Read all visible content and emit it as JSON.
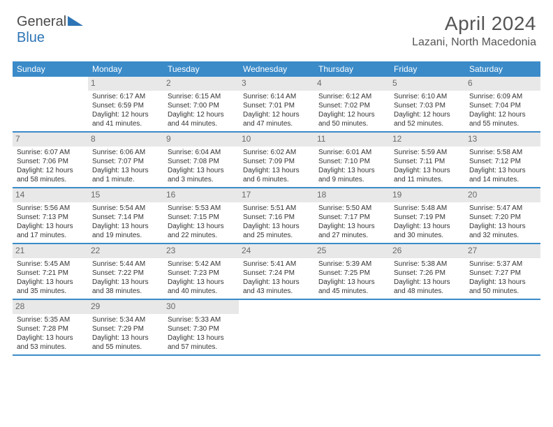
{
  "logo": {
    "text1": "General",
    "text2": "Blue",
    "color_gray": "#4a4a4a",
    "color_blue": "#2e75b6"
  },
  "title": "April 2024",
  "subtitle": "Lazani, North Macedonia",
  "colors": {
    "header_bg": "#3b8bc9",
    "header_text": "#ffffff",
    "daynum_bg": "#e8e8e8",
    "daynum_text": "#6a6a6a",
    "row_border": "#3b8bc9",
    "body_text": "#333333"
  },
  "weekdays": [
    "Sunday",
    "Monday",
    "Tuesday",
    "Wednesday",
    "Thursday",
    "Friday",
    "Saturday"
  ],
  "weeks": [
    [
      {
        "day": "",
        "lines": []
      },
      {
        "day": "1",
        "lines": [
          "Sunrise: 6:17 AM",
          "Sunset: 6:59 PM",
          "Daylight: 12 hours",
          "and 41 minutes."
        ]
      },
      {
        "day": "2",
        "lines": [
          "Sunrise: 6:15 AM",
          "Sunset: 7:00 PM",
          "Daylight: 12 hours",
          "and 44 minutes."
        ]
      },
      {
        "day": "3",
        "lines": [
          "Sunrise: 6:14 AM",
          "Sunset: 7:01 PM",
          "Daylight: 12 hours",
          "and 47 minutes."
        ]
      },
      {
        "day": "4",
        "lines": [
          "Sunrise: 6:12 AM",
          "Sunset: 7:02 PM",
          "Daylight: 12 hours",
          "and 50 minutes."
        ]
      },
      {
        "day": "5",
        "lines": [
          "Sunrise: 6:10 AM",
          "Sunset: 7:03 PM",
          "Daylight: 12 hours",
          "and 52 minutes."
        ]
      },
      {
        "day": "6",
        "lines": [
          "Sunrise: 6:09 AM",
          "Sunset: 7:04 PM",
          "Daylight: 12 hours",
          "and 55 minutes."
        ]
      }
    ],
    [
      {
        "day": "7",
        "lines": [
          "Sunrise: 6:07 AM",
          "Sunset: 7:06 PM",
          "Daylight: 12 hours",
          "and 58 minutes."
        ]
      },
      {
        "day": "8",
        "lines": [
          "Sunrise: 6:06 AM",
          "Sunset: 7:07 PM",
          "Daylight: 13 hours",
          "and 1 minute."
        ]
      },
      {
        "day": "9",
        "lines": [
          "Sunrise: 6:04 AM",
          "Sunset: 7:08 PM",
          "Daylight: 13 hours",
          "and 3 minutes."
        ]
      },
      {
        "day": "10",
        "lines": [
          "Sunrise: 6:02 AM",
          "Sunset: 7:09 PM",
          "Daylight: 13 hours",
          "and 6 minutes."
        ]
      },
      {
        "day": "11",
        "lines": [
          "Sunrise: 6:01 AM",
          "Sunset: 7:10 PM",
          "Daylight: 13 hours",
          "and 9 minutes."
        ]
      },
      {
        "day": "12",
        "lines": [
          "Sunrise: 5:59 AM",
          "Sunset: 7:11 PM",
          "Daylight: 13 hours",
          "and 11 minutes."
        ]
      },
      {
        "day": "13",
        "lines": [
          "Sunrise: 5:58 AM",
          "Sunset: 7:12 PM",
          "Daylight: 13 hours",
          "and 14 minutes."
        ]
      }
    ],
    [
      {
        "day": "14",
        "lines": [
          "Sunrise: 5:56 AM",
          "Sunset: 7:13 PM",
          "Daylight: 13 hours",
          "and 17 minutes."
        ]
      },
      {
        "day": "15",
        "lines": [
          "Sunrise: 5:54 AM",
          "Sunset: 7:14 PM",
          "Daylight: 13 hours",
          "and 19 minutes."
        ]
      },
      {
        "day": "16",
        "lines": [
          "Sunrise: 5:53 AM",
          "Sunset: 7:15 PM",
          "Daylight: 13 hours",
          "and 22 minutes."
        ]
      },
      {
        "day": "17",
        "lines": [
          "Sunrise: 5:51 AM",
          "Sunset: 7:16 PM",
          "Daylight: 13 hours",
          "and 25 minutes."
        ]
      },
      {
        "day": "18",
        "lines": [
          "Sunrise: 5:50 AM",
          "Sunset: 7:17 PM",
          "Daylight: 13 hours",
          "and 27 minutes."
        ]
      },
      {
        "day": "19",
        "lines": [
          "Sunrise: 5:48 AM",
          "Sunset: 7:19 PM",
          "Daylight: 13 hours",
          "and 30 minutes."
        ]
      },
      {
        "day": "20",
        "lines": [
          "Sunrise: 5:47 AM",
          "Sunset: 7:20 PM",
          "Daylight: 13 hours",
          "and 32 minutes."
        ]
      }
    ],
    [
      {
        "day": "21",
        "lines": [
          "Sunrise: 5:45 AM",
          "Sunset: 7:21 PM",
          "Daylight: 13 hours",
          "and 35 minutes."
        ]
      },
      {
        "day": "22",
        "lines": [
          "Sunrise: 5:44 AM",
          "Sunset: 7:22 PM",
          "Daylight: 13 hours",
          "and 38 minutes."
        ]
      },
      {
        "day": "23",
        "lines": [
          "Sunrise: 5:42 AM",
          "Sunset: 7:23 PM",
          "Daylight: 13 hours",
          "and 40 minutes."
        ]
      },
      {
        "day": "24",
        "lines": [
          "Sunrise: 5:41 AM",
          "Sunset: 7:24 PM",
          "Daylight: 13 hours",
          "and 43 minutes."
        ]
      },
      {
        "day": "25",
        "lines": [
          "Sunrise: 5:39 AM",
          "Sunset: 7:25 PM",
          "Daylight: 13 hours",
          "and 45 minutes."
        ]
      },
      {
        "day": "26",
        "lines": [
          "Sunrise: 5:38 AM",
          "Sunset: 7:26 PM",
          "Daylight: 13 hours",
          "and 48 minutes."
        ]
      },
      {
        "day": "27",
        "lines": [
          "Sunrise: 5:37 AM",
          "Sunset: 7:27 PM",
          "Daylight: 13 hours",
          "and 50 minutes."
        ]
      }
    ],
    [
      {
        "day": "28",
        "lines": [
          "Sunrise: 5:35 AM",
          "Sunset: 7:28 PM",
          "Daylight: 13 hours",
          "and 53 minutes."
        ]
      },
      {
        "day": "29",
        "lines": [
          "Sunrise: 5:34 AM",
          "Sunset: 7:29 PM",
          "Daylight: 13 hours",
          "and 55 minutes."
        ]
      },
      {
        "day": "30",
        "lines": [
          "Sunrise: 5:33 AM",
          "Sunset: 7:30 PM",
          "Daylight: 13 hours",
          "and 57 minutes."
        ]
      },
      {
        "day": "",
        "lines": []
      },
      {
        "day": "",
        "lines": []
      },
      {
        "day": "",
        "lines": []
      },
      {
        "day": "",
        "lines": []
      }
    ]
  ]
}
